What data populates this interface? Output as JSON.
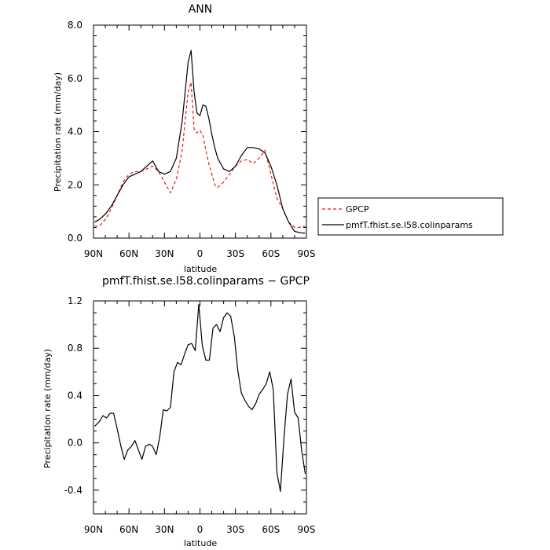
{
  "figure": {
    "background": "#ffffff"
  },
  "chart_data": [
    {
      "type": "line",
      "title": "ANN",
      "xlabel": "latitude",
      "ylabel": "Precipitation rate (mm/day)",
      "xlim": [
        90,
        -90
      ],
      "ylim": [
        0,
        8
      ],
      "xticks": [
        90,
        60,
        30,
        0,
        -30,
        -60,
        -90
      ],
      "xtick_labels": [
        "90N",
        "60N",
        "30N",
        "0",
        "30S",
        "60S",
        "90S"
      ],
      "yticks": [
        0,
        2,
        4,
        6,
        8
      ],
      "ytick_labels": [
        "0.0",
        "2.0",
        "4.0",
        "6.0",
        "8.0"
      ],
      "legend_position": "outside-right",
      "series": [
        {
          "name": "GPCP",
          "color": "#e8181c",
          "style": "dashed",
          "x": [
            89,
            85,
            80,
            75,
            70,
            65,
            60,
            55,
            50,
            45,
            40,
            35,
            30,
            25,
            20,
            15,
            10,
            7.5,
            5,
            2.5,
            0,
            -2.5,
            -5,
            -7.5,
            -10,
            -12.5,
            -15,
            -20,
            -25,
            -30,
            -35,
            -40,
            -45,
            -50,
            -55,
            -60,
            -65,
            -70,
            -75,
            -80,
            -85,
            -89
          ],
          "y": [
            0.45,
            0.45,
            0.7,
            1.1,
            1.6,
            2.1,
            2.4,
            2.5,
            2.5,
            2.6,
            2.7,
            2.5,
            2.1,
            1.7,
            2.2,
            3.3,
            5.5,
            5.85,
            4.1,
            3.95,
            4.05,
            3.85,
            3.3,
            2.8,
            2.4,
            2.0,
            1.9,
            2.1,
            2.4,
            2.7,
            2.9,
            2.95,
            2.8,
            3.0,
            3.3,
            2.4,
            1.5,
            1.1,
            0.6,
            0.4,
            0.4,
            0.45
          ]
        },
        {
          "name": "pmfT.fhist.se.l58.colinparams",
          "color": "#000000",
          "style": "solid",
          "x": [
            89,
            85,
            80,
            75,
            70,
            65,
            60,
            55,
            50,
            45,
            40,
            35,
            30,
            25,
            20,
            15,
            10,
            7.5,
            5,
            2.5,
            0,
            -2.5,
            -5,
            -7.5,
            -10,
            -12.5,
            -15,
            -20,
            -25,
            -30,
            -35,
            -40,
            -45,
            -50,
            -55,
            -60,
            -65,
            -70,
            -75,
            -80,
            -85,
            -89
          ],
          "y": [
            0.6,
            0.7,
            0.9,
            1.2,
            1.6,
            2.0,
            2.3,
            2.4,
            2.5,
            2.7,
            2.9,
            2.5,
            2.4,
            2.5,
            3.0,
            4.4,
            6.6,
            7.05,
            5.5,
            4.7,
            4.6,
            5.0,
            4.95,
            4.5,
            3.9,
            3.4,
            3.0,
            2.6,
            2.5,
            2.7,
            3.1,
            3.4,
            3.4,
            3.35,
            3.2,
            2.7,
            2.0,
            1.1,
            0.6,
            0.25,
            0.2,
            0.18
          ]
        }
      ]
    },
    {
      "type": "line",
      "title": "pmfT.fhist.se.l58.colinparams − GPCP",
      "xlabel": "latitude",
      "ylabel": "Precipitation rate (mm/day)",
      "xlim": [
        90,
        -90
      ],
      "ylim": [
        -0.6,
        1.2
      ],
      "xticks": [
        90,
        60,
        30,
        0,
        -30,
        -60,
        -90
      ],
      "xtick_labels": [
        "90N",
        "60N",
        "30N",
        "0",
        "30S",
        "60S",
        "90S"
      ],
      "yticks": [
        -0.4,
        0,
        0.4,
        0.8,
        1.2
      ],
      "ytick_labels": [
        "-0.4",
        "0.0",
        "0.4",
        "0.8",
        "1.2"
      ],
      "series": [
        {
          "color": "#000000",
          "style": "solid",
          "x": [
            89,
            85,
            82,
            79,
            76,
            73,
            70,
            67,
            64,
            61,
            58,
            55,
            52,
            49,
            46,
            43,
            40,
            37,
            34,
            31,
            28,
            25,
            22,
            19,
            16,
            13,
            10,
            7,
            4,
            1,
            -2,
            -5,
            -8,
            -11,
            -14,
            -17,
            -20,
            -23,
            -26,
            -29,
            -32,
            -35,
            -38,
            -41,
            -44,
            -47,
            -50,
            -53,
            -56,
            -59,
            -62,
            -65,
            -68,
            -71,
            -74,
            -77,
            -80,
            -83,
            -86,
            -89
          ],
          "y": [
            0.14,
            0.18,
            0.23,
            0.21,
            0.25,
            0.25,
            0.12,
            -0.02,
            -0.14,
            -0.06,
            -0.03,
            0.02,
            -0.06,
            -0.14,
            -0.03,
            -0.01,
            -0.03,
            -0.1,
            0.05,
            0.28,
            0.27,
            0.3,
            0.6,
            0.68,
            0.66,
            0.75,
            0.83,
            0.84,
            0.78,
            1.17,
            0.82,
            0.7,
            0.7,
            0.97,
            1.0,
            0.94,
            1.06,
            1.1,
            1.07,
            0.9,
            0.61,
            0.42,
            0.36,
            0.31,
            0.28,
            0.33,
            0.41,
            0.45,
            0.5,
            0.6,
            0.45,
            -0.25,
            -0.41,
            0.04,
            0.41,
            0.54,
            0.26,
            0.21,
            -0.07,
            -0.26
          ]
        }
      ]
    }
  ]
}
